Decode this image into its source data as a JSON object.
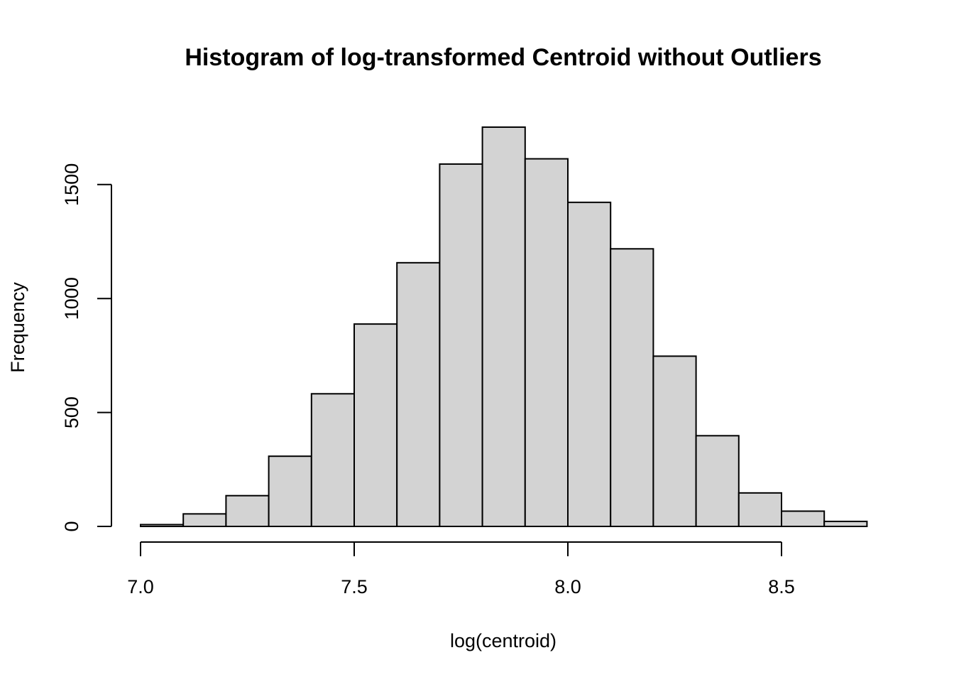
{
  "chart_data": {
    "type": "bar",
    "title": "Histogram of log-transformed Centroid without Outliers",
    "xlabel": "log(centroid)",
    "ylabel": "Frequency",
    "bins": [
      {
        "x0": 7.0,
        "x1": 7.1,
        "count": 8
      },
      {
        "x0": 7.1,
        "x1": 7.2,
        "count": 55
      },
      {
        "x0": 7.2,
        "x1": 7.3,
        "count": 135
      },
      {
        "x0": 7.3,
        "x1": 7.4,
        "count": 308
      },
      {
        "x0": 7.4,
        "x1": 7.5,
        "count": 582
      },
      {
        "x0": 7.5,
        "x1": 7.6,
        "count": 888
      },
      {
        "x0": 7.6,
        "x1": 7.7,
        "count": 1157
      },
      {
        "x0": 7.7,
        "x1": 7.8,
        "count": 1590
      },
      {
        "x0": 7.8,
        "x1": 7.9,
        "count": 1752
      },
      {
        "x0": 7.9,
        "x1": 8.0,
        "count": 1613
      },
      {
        "x0": 8.0,
        "x1": 8.1,
        "count": 1422
      },
      {
        "x0": 8.1,
        "x1": 8.2,
        "count": 1218
      },
      {
        "x0": 8.2,
        "x1": 8.3,
        "count": 747
      },
      {
        "x0": 8.3,
        "x1": 8.4,
        "count": 398
      },
      {
        "x0": 8.4,
        "x1": 8.5,
        "count": 147
      },
      {
        "x0": 8.5,
        "x1": 8.6,
        "count": 67
      },
      {
        "x0": 8.6,
        "x1": 8.7,
        "count": 22
      }
    ],
    "x_ticks": [
      {
        "value": 7.0,
        "label": "7.0"
      },
      {
        "value": 7.5,
        "label": "7.5"
      },
      {
        "value": 8.0,
        "label": "8.0"
      },
      {
        "value": 8.5,
        "label": "8.5"
      }
    ],
    "y_ticks": [
      {
        "value": 0,
        "label": "0"
      },
      {
        "value": 500,
        "label": "500"
      },
      {
        "value": 1000,
        "label": "1000"
      },
      {
        "value": 1500,
        "label": "1500"
      }
    ],
    "xlim": [
      7.0,
      8.7
    ],
    "ylim": [
      0,
      1752
    ],
    "grid": false,
    "colors": {
      "bar_fill": "#d3d3d3",
      "bar_stroke": "#000000"
    }
  }
}
